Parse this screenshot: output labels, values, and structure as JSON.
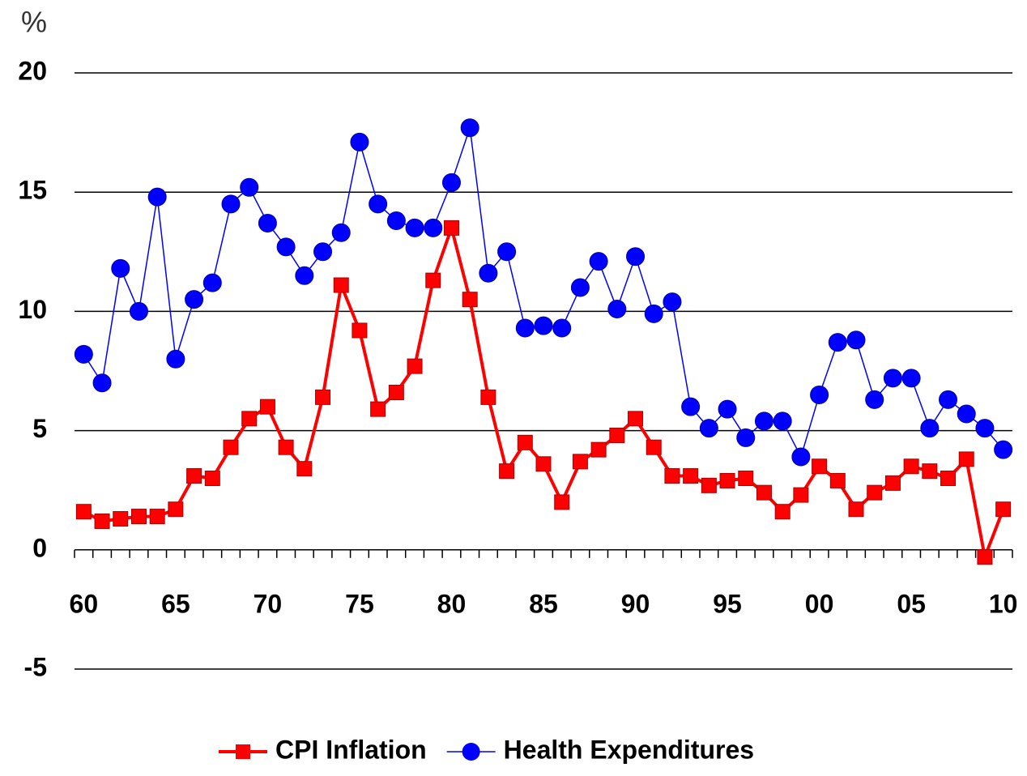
{
  "chart_data": {
    "type": "line",
    "y_label": "%",
    "categories": [
      "60",
      null,
      null,
      null,
      null,
      "65",
      null,
      null,
      null,
      null,
      "70",
      null,
      null,
      null,
      null,
      "75",
      null,
      null,
      null,
      null,
      "80",
      null,
      null,
      null,
      null,
      "85",
      null,
      null,
      null,
      null,
      "90",
      null,
      null,
      null,
      null,
      "95",
      null,
      null,
      null,
      null,
      "00",
      null,
      null,
      null,
      null,
      "05",
      null,
      null,
      null,
      null,
      "10"
    ],
    "series": [
      {
        "name": "CPI Inflation",
        "color": "#ff0000",
        "marker": "square",
        "values": [
          1.6,
          1.2,
          1.3,
          1.4,
          1.4,
          1.7,
          3.1,
          3.0,
          4.3,
          5.5,
          6.0,
          4.3,
          3.4,
          6.4,
          11.1,
          9.2,
          5.9,
          6.6,
          7.7,
          11.3,
          13.5,
          10.5,
          6.4,
          3.3,
          4.5,
          3.6,
          2.0,
          3.7,
          4.2,
          4.8,
          5.5,
          4.3,
          3.1,
          3.1,
          2.7,
          2.9,
          3.0,
          2.4,
          1.6,
          2.3,
          3.5,
          2.9,
          1.7,
          2.4,
          2.8,
          3.5,
          3.3,
          3.0,
          3.8,
          -0.3,
          1.7
        ]
      },
      {
        "name": "Health Expenditures",
        "color": "#0000ff",
        "marker": "circle",
        "values": [
          8.2,
          7.0,
          11.8,
          10.0,
          14.8,
          8.0,
          10.5,
          11.2,
          14.5,
          15.2,
          13.7,
          12.7,
          11.5,
          12.5,
          13.3,
          17.1,
          14.5,
          13.8,
          13.5,
          13.5,
          15.4,
          17.7,
          11.6,
          12.5,
          9.3,
          9.4,
          9.3,
          11.0,
          12.1,
          10.1,
          12.3,
          9.9,
          10.4,
          6.0,
          5.1,
          5.9,
          4.7,
          5.4,
          5.4,
          3.9,
          6.5,
          8.7,
          8.8,
          6.3,
          7.2,
          7.2,
          5.1,
          6.3,
          5.7,
          5.1,
          4.2
        ]
      }
    ],
    "ylim": [
      -5,
      20
    ],
    "yticks": [
      -5,
      0,
      5,
      10,
      15,
      20
    ],
    "grid": true,
    "legend": "bottom"
  }
}
